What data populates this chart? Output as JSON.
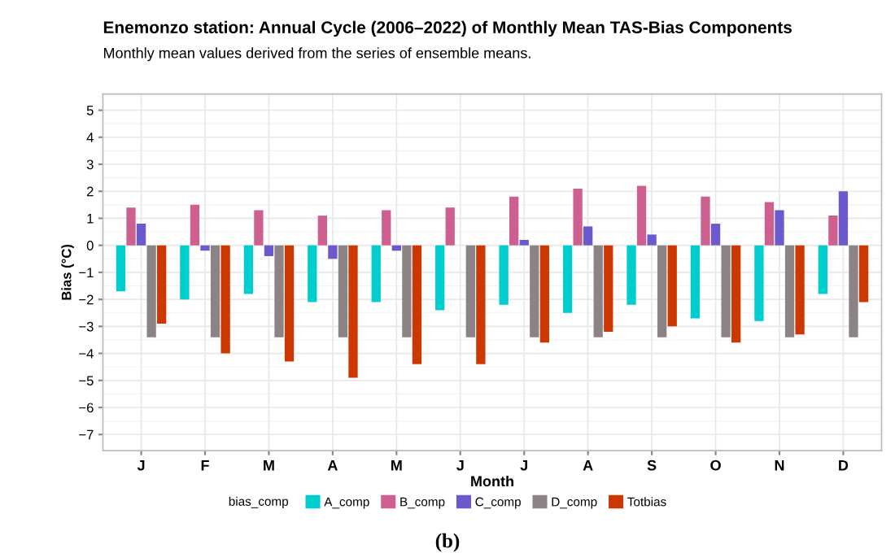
{
  "chart_data": {
    "type": "bar",
    "title": "Enemonzo station: Annual Cycle (2006–2022) of Monthly Mean TAS-Bias Components",
    "subtitle": "Monthly mean values derived from the series of ensemble means.",
    "xlabel": "Month",
    "ylabel": "Bias (°C)",
    "legend_title": "bias_comp",
    "legend": "bottom",
    "grid": true,
    "categories": [
      "J",
      "F",
      "M",
      "A",
      "M",
      "J",
      "J",
      "A",
      "S",
      "O",
      "N",
      "D"
    ],
    "series": [
      {
        "name": "A_comp",
        "color": "#00cdcd",
        "values": [
          -1.7,
          -2.0,
          -1.8,
          -2.1,
          -2.1,
          -2.4,
          -2.2,
          -2.5,
          -2.2,
          -2.7,
          -2.8,
          -1.8
        ]
      },
      {
        "name": "B_comp",
        "color": "#cd6090",
        "values": [
          1.4,
          1.5,
          1.3,
          1.1,
          1.3,
          1.4,
          1.8,
          2.1,
          2.2,
          1.8,
          1.6,
          1.1
        ]
      },
      {
        "name": "C_comp",
        "color": "#6a5acd",
        "values": [
          0.8,
          -0.2,
          -0.4,
          -0.5,
          -0.2,
          0,
          0.2,
          0.7,
          0.4,
          0.8,
          1.3,
          2.0
        ]
      },
      {
        "name": "D_comp",
        "color": "#8b8386",
        "values": [
          -3.4,
          -3.4,
          -3.4,
          -3.4,
          -3.4,
          -3.4,
          -3.4,
          -3.4,
          -3.4,
          -3.4,
          -3.4,
          -3.4
        ]
      },
      {
        "name": "Totbias",
        "color": "#cd3700",
        "values": [
          -2.9,
          -4.0,
          -4.3,
          -4.9,
          -4.4,
          -4.4,
          -3.6,
          -3.2,
          -3.0,
          -3.6,
          -3.3,
          -2.1
        ]
      }
    ],
    "ylim": [
      -7.6,
      5.6
    ],
    "yticks": [
      -7,
      -6,
      -5,
      -4,
      -3,
      -2,
      -1,
      0,
      1,
      2,
      3,
      4,
      5
    ],
    "annotations": [
      "(b)"
    ]
  }
}
